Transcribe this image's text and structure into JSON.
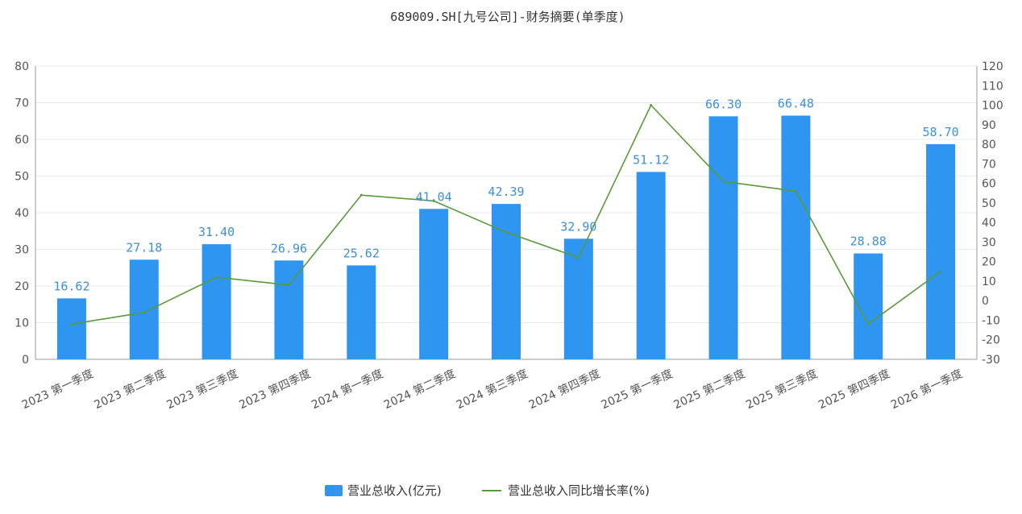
{
  "chart_data": {
    "type": "bar",
    "title": "689009.SH[九号公司]-财务摘要(单季度)",
    "categories": [
      "2023 第一季度",
      "2023 第二季度",
      "2023 第三季度",
      "2023 第四季度",
      "2024 第一季度",
      "2024 第二季度",
      "2024 第三季度",
      "2024 第四季度",
      "2025 第一季度",
      "2025 第二季度",
      "2025 第三季度",
      "2025 第四季度",
      "2026 第一季度"
    ],
    "series": [
      {
        "name": "营业总收入(亿元)",
        "type": "bar",
        "axis": "left",
        "color": "#2e95f0",
        "values": [
          16.62,
          27.18,
          31.4,
          26.96,
          25.62,
          41.04,
          42.39,
          32.9,
          51.12,
          66.3,
          66.48,
          28.88,
          58.7
        ],
        "labels": [
          "16.62",
          "27.18",
          "31.40",
          "26.96",
          "25.62",
          "41.04",
          "42.39",
          "32.90",
          "51.12",
          "66.30",
          "66.48",
          "28.88",
          "58.70"
        ]
      },
      {
        "name": "营业总收入同比增长率(%)",
        "type": "line",
        "axis": "right",
        "color": "#5b9a3a",
        "values": [
          -12,
          -6,
          12,
          8,
          54,
          51,
          35,
          22,
          100,
          61,
          56,
          -12,
          15
        ]
      }
    ],
    "y_left": {
      "min": 0,
      "max": 80,
      "step": 10
    },
    "y_right": {
      "min": -30,
      "max": 120,
      "step": 10
    },
    "grid": true,
    "legend": "bottom-center"
  }
}
